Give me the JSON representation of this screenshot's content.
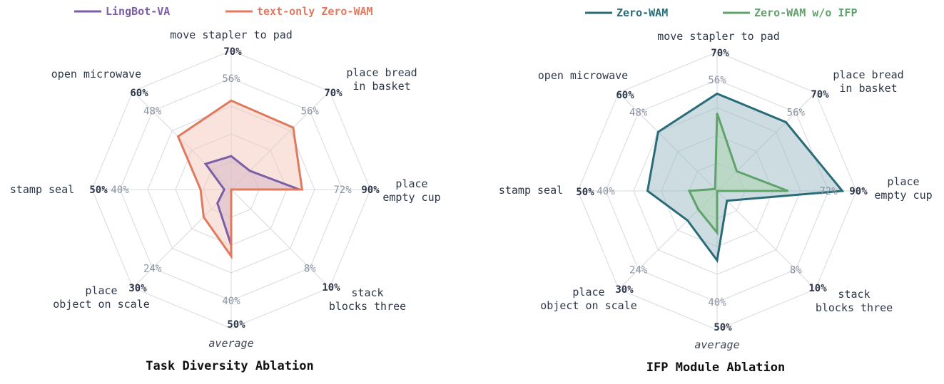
{
  "chart_data": [
    {
      "type": "radar",
      "title": "Task Diversity Ablation",
      "categories": [
        "move stapler to pad",
        "place bread in basket",
        "place empty cup",
        "stack blocks three",
        "average",
        "place object on scale",
        "stamp seal",
        "open microwave"
      ],
      "category_lines": [
        [
          "move stapler to pad"
        ],
        [
          "place bread",
          "in basket"
        ],
        [
          "place",
          "empty cup"
        ],
        [
          "stack",
          "blocks three"
        ],
        [
          "average"
        ],
        [
          "place",
          "object on scale"
        ],
        [
          "stamp seal"
        ],
        [
          "open microwave"
        ]
      ],
      "axis_max": [
        "70%",
        "70%",
        "90%",
        "10%",
        "50%",
        "30%",
        "50%",
        "60%"
      ],
      "axis_tick": [
        "56%",
        "56%",
        "72%",
        "8%",
        "40%",
        "24%",
        "40%",
        "48%"
      ],
      "series": [
        {
          "name": "LingBot-VA",
          "color": "#7b5ea7",
          "fill": "#b3a3cf",
          "values": [
            0.24,
            0.19,
            0.49,
            0.0,
            0.4,
            0.14,
            0.05,
            0.26
          ]
        },
        {
          "name": "text-only Zero-WAM",
          "color": "#e07a5f",
          "fill": "#f4c7b9",
          "values": [
            0.64,
            0.63,
            0.51,
            0.0,
            0.48,
            0.28,
            0.22,
            0.54
          ]
        }
      ]
    },
    {
      "type": "radar",
      "title": "IFP Module Ablation",
      "categories": [
        "move stapler to pad",
        "place bread in basket",
        "place empty cup",
        "stack blocks three",
        "average",
        "place object on scale",
        "stamp seal",
        "open microwave"
      ],
      "category_lines": [
        [
          "move stapler to pad"
        ],
        [
          "place bread",
          "in basket"
        ],
        [
          "place",
          "empty cup"
        ],
        [
          "stack",
          "blocks three"
        ],
        [
          "average"
        ],
        [
          "place",
          "object on scale"
        ],
        [
          "stamp seal"
        ],
        [
          "open microwave"
        ]
      ],
      "axis_max": [
        "70%",
        "70%",
        "90%",
        "10%",
        "50%",
        "30%",
        "50%",
        "60%"
      ],
      "axis_tick": [
        "56%",
        "56%",
        "72%",
        "8%",
        "40%",
        "24%",
        "40%",
        "48%"
      ],
      "series": [
        {
          "name": "Zero-WAM",
          "color": "#2a6b78",
          "fill": "#9ab9c3",
          "values": [
            0.7,
            0.7,
            0.9,
            0.1,
            0.5,
            0.3,
            0.5,
            0.6
          ]
        },
        {
          "name": "Zero-WAM w/o IFP",
          "color": "#5fa36a",
          "fill": "#a9d3ad",
          "values": [
            0.56,
            0.2,
            0.51,
            0.0,
            0.3,
            0.19,
            0.2,
            0.02
          ]
        }
      ]
    }
  ]
}
